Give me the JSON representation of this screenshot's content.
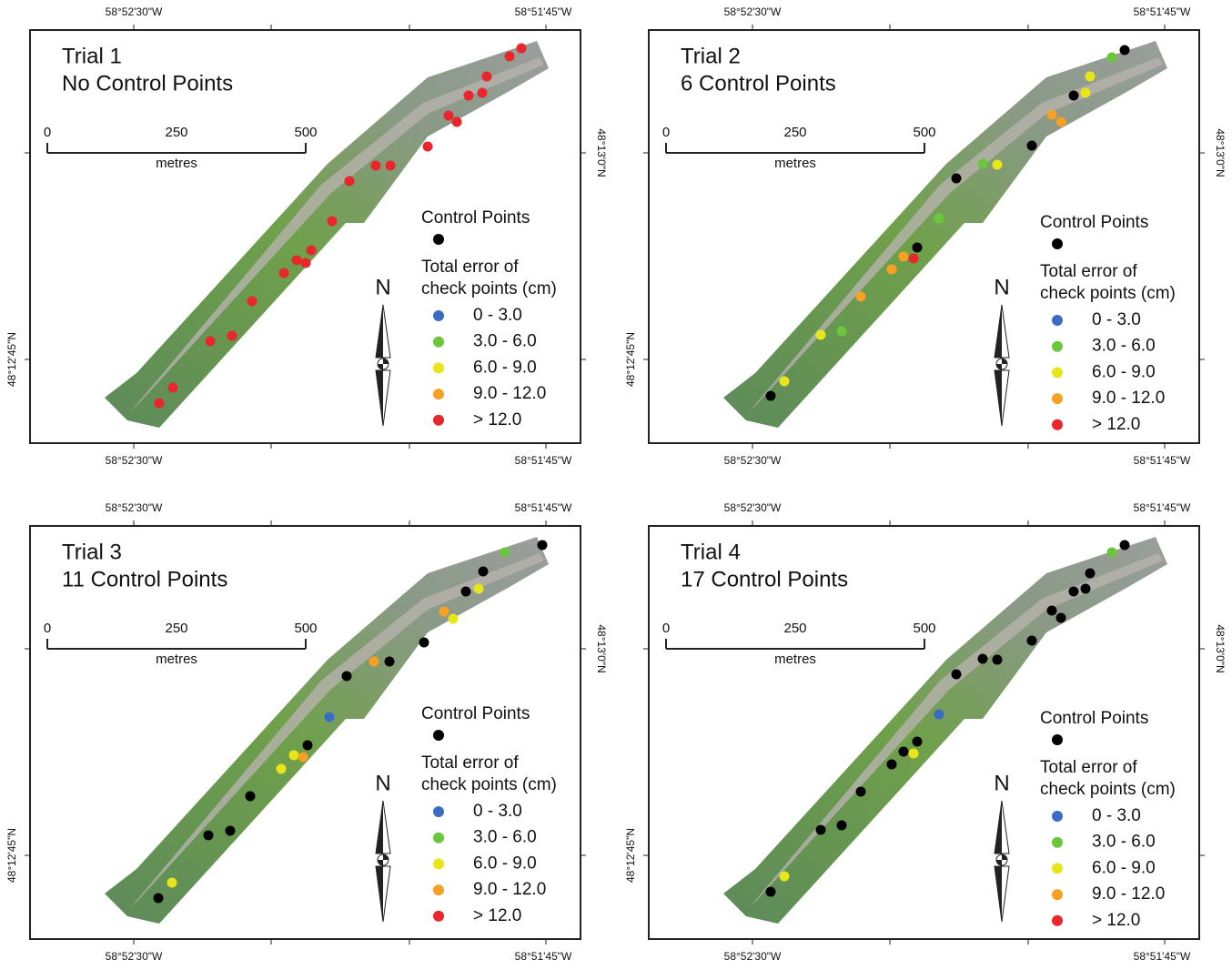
{
  "map": {
    "lon_labels": [
      "58°52'30\"W",
      "58°51'45\"W"
    ],
    "lat_labels": [
      "48°13'0\"N",
      "48°12'45\"N"
    ],
    "scale": {
      "ticks": [
        0,
        250,
        500
      ],
      "unit": "metres"
    },
    "north": "N",
    "legend": {
      "control_title": "Control Points",
      "check_title": [
        "Total error of",
        "check points (cm)"
      ],
      "classes": [
        {
          "label": "0 - 3.0",
          "color": "#3a6cc6"
        },
        {
          "label": "3.0 - 6.0",
          "color": "#6cc63c"
        },
        {
          "label": "6.0 - 9.0",
          "color": "#e8e619"
        },
        {
          "label": "9.0 - 12.0",
          "color": "#f7a124"
        },
        {
          "label": "> 12.0",
          "color": "#e8262b"
        }
      ]
    },
    "panels": [
      {
        "title": "Trial 1",
        "subtitle": "No Control Points"
      },
      {
        "title": "Trial 2",
        "subtitle": "6 Control Points"
      },
      {
        "title": "Trial 3",
        "subtitle": "11 Control Points"
      },
      {
        "title": "Trial 4",
        "subtitle": "17 Control Points"
      }
    ]
  }
}
